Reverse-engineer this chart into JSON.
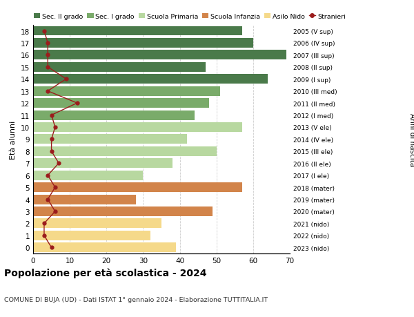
{
  "ages": [
    18,
    17,
    16,
    15,
    14,
    13,
    12,
    11,
    10,
    9,
    8,
    7,
    6,
    5,
    4,
    3,
    2,
    1,
    0
  ],
  "right_labels": [
    "2005 (V sup)",
    "2006 (IV sup)",
    "2007 (III sup)",
    "2008 (II sup)",
    "2009 (I sup)",
    "2010 (III med)",
    "2011 (II med)",
    "2012 (I med)",
    "2013 (V ele)",
    "2014 (IV ele)",
    "2015 (III ele)",
    "2016 (II ele)",
    "2017 (I ele)",
    "2018 (mater)",
    "2019 (mater)",
    "2020 (mater)",
    "2021 (nido)",
    "2022 (nido)",
    "2023 (nido)"
  ],
  "bar_values": [
    57,
    60,
    69,
    47,
    64,
    51,
    48,
    44,
    57,
    42,
    50,
    38,
    30,
    57,
    28,
    49,
    35,
    32,
    39
  ],
  "stranieri_values": [
    3,
    4,
    4,
    4,
    9,
    4,
    12,
    5,
    6,
    5,
    5,
    7,
    4,
    6,
    4,
    6,
    3,
    3,
    5
  ],
  "bar_colors": [
    "#4a7a4a",
    "#4a7a4a",
    "#4a7a4a",
    "#4a7a4a",
    "#4a7a4a",
    "#7aab6a",
    "#7aab6a",
    "#7aab6a",
    "#b8d8a0",
    "#b8d8a0",
    "#b8d8a0",
    "#b8d8a0",
    "#b8d8a0",
    "#d2844a",
    "#d2844a",
    "#d2844a",
    "#f5d98a",
    "#f5d98a",
    "#f5d98a"
  ],
  "legend_labels": [
    "Sec. II grado",
    "Sec. I grado",
    "Scuola Primaria",
    "Scuola Infanzia",
    "Asilo Nido",
    "Stranieri"
  ],
  "legend_colors": [
    "#4a7a4a",
    "#7aab6a",
    "#b8d8a0",
    "#d2844a",
    "#f5d98a",
    "#9b1c1c"
  ],
  "stranieri_color": "#9b1c1c",
  "title": "Popolazione per età scolastica - 2024",
  "subtitle": "COMUNE DI BUJA (UD) - Dati ISTAT 1° gennaio 2024 - Elaborazione TUTTITALIA.IT",
  "ylabel_left": "Età alunni",
  "ylabel_right": "Anni di nascita",
  "xlim": [
    0,
    70
  ],
  "xticks": [
    0,
    10,
    20,
    30,
    40,
    50,
    60,
    70
  ],
  "background_color": "#ffffff",
  "grid_color": "#cccccc"
}
